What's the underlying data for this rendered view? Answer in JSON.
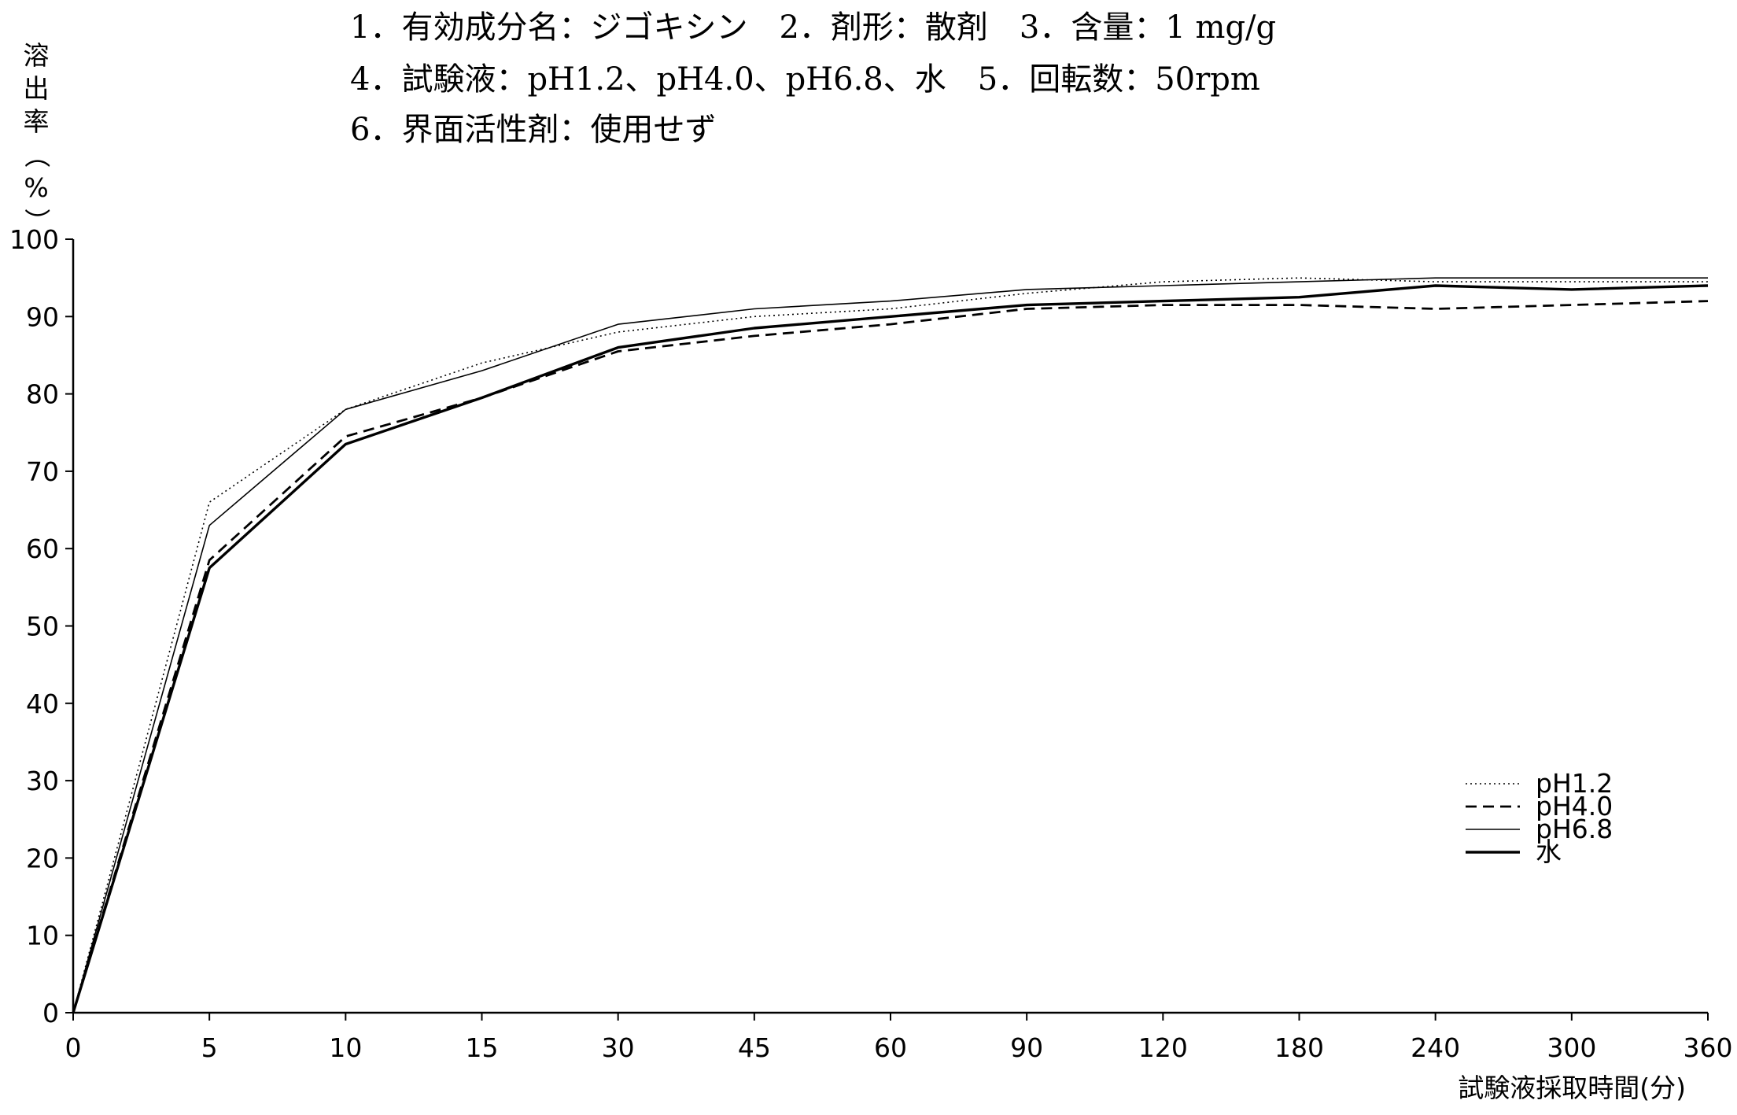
{
  "chart_data": {
    "type": "line",
    "title_lines": [
      "1．有効成分名：ジゴキシン　2．剤形：散剤　3．含量：1 mg/g",
      "4．試験液：pH1.2、pH4.0、pH6.8、水　5．回転数：50rpm",
      "6．界面活性剤：使用せず"
    ],
    "ylabel": "溶出率（%）",
    "xlabel": "試験液採取時間(分)",
    "categories": [
      "0",
      "5",
      "10",
      "15",
      "30",
      "45",
      "60",
      "90",
      "120",
      "180",
      "240",
      "300",
      "360"
    ],
    "y_ticks": [
      "0",
      "10",
      "20",
      "30",
      "40",
      "50",
      "60",
      "70",
      "80",
      "90",
      "100"
    ],
    "ylim": [
      0,
      100
    ],
    "grid": false,
    "legend_position": "bottom-right",
    "series": [
      {
        "name": "pH1.2",
        "line_style": "dotted",
        "color": "#000000",
        "points": [
          [
            0,
            0
          ],
          [
            5,
            66
          ],
          [
            10,
            78
          ],
          [
            15,
            84
          ],
          [
            30,
            88
          ],
          [
            45,
            90
          ],
          [
            60,
            91
          ],
          [
            90,
            93
          ],
          [
            120,
            94.5
          ],
          [
            180,
            95
          ],
          [
            240,
            94.5
          ],
          [
            300,
            94.5
          ],
          [
            360,
            94.5
          ]
        ]
      },
      {
        "name": "pH4.0",
        "line_style": "dashed",
        "color": "#000000",
        "points": [
          [
            0,
            0
          ],
          [
            5,
            58.5
          ],
          [
            10,
            74.5
          ],
          [
            15,
            79.5
          ],
          [
            30,
            85.5
          ],
          [
            45,
            87.5
          ],
          [
            60,
            89
          ],
          [
            90,
            91
          ],
          [
            120,
            91.5
          ],
          [
            180,
            91.5
          ],
          [
            240,
            91
          ],
          [
            300,
            91.5
          ],
          [
            360,
            92
          ]
        ]
      },
      {
        "name": "pH6.8",
        "line_style": "thin-solid",
        "color": "#000000",
        "points": [
          [
            0,
            0
          ],
          [
            5,
            63
          ],
          [
            10,
            78
          ],
          [
            15,
            83
          ],
          [
            30,
            89
          ],
          [
            45,
            91
          ],
          [
            60,
            92
          ],
          [
            90,
            93.5
          ],
          [
            120,
            94
          ],
          [
            180,
            94.5
          ],
          [
            240,
            95
          ],
          [
            300,
            95
          ],
          [
            360,
            95
          ]
        ]
      },
      {
        "name": "水",
        "line_style": "thick-solid",
        "color": "#000000",
        "points": [
          [
            0,
            0
          ],
          [
            5,
            57.5
          ],
          [
            10,
            73.5
          ],
          [
            15,
            79.5
          ],
          [
            30,
            86
          ],
          [
            45,
            88.5
          ],
          [
            60,
            90
          ],
          [
            90,
            91.5
          ],
          [
            120,
            92
          ],
          [
            180,
            92.5
          ],
          [
            240,
            94
          ],
          [
            300,
            93.5
          ],
          [
            360,
            94
          ]
        ]
      }
    ]
  }
}
